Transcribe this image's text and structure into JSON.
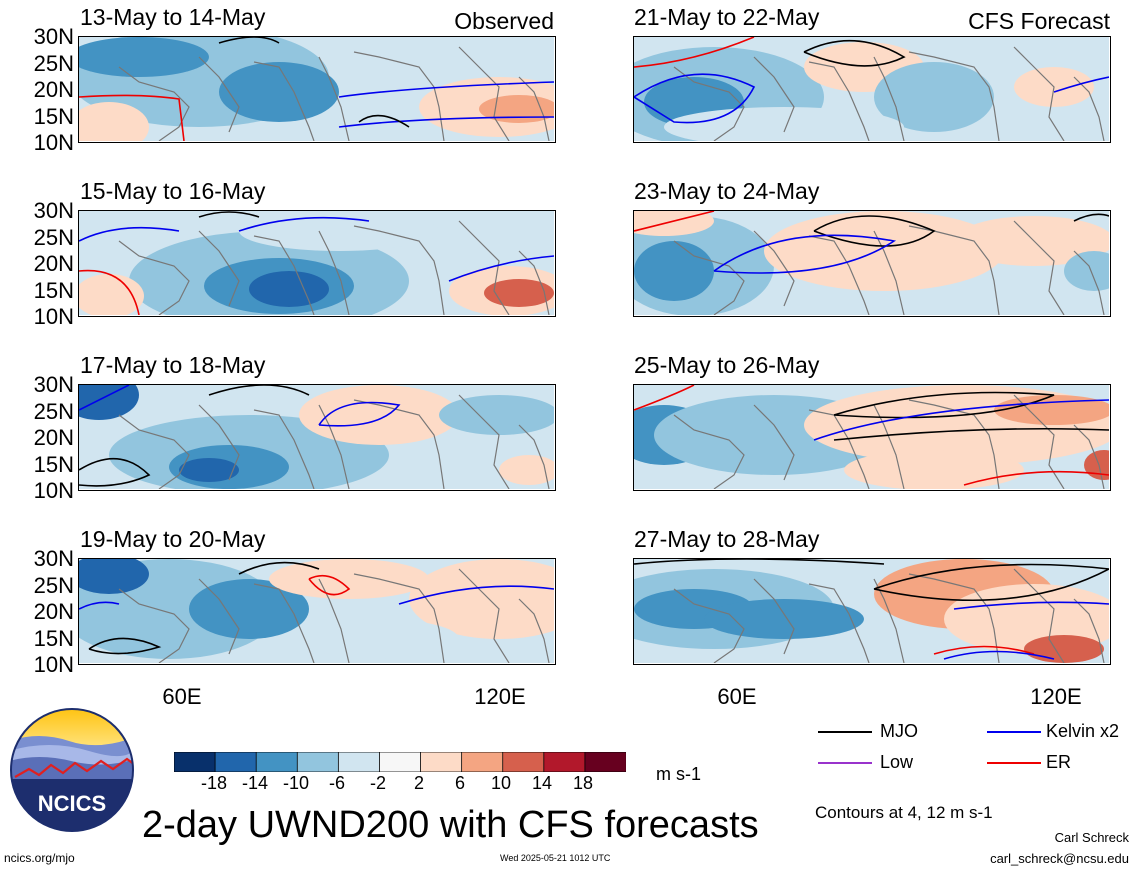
{
  "panels": [
    {
      "title": "13-May to 14-May",
      "tag": "Observed"
    },
    {
      "title": "21-May to 22-May",
      "tag": "CFS Forecast"
    },
    {
      "title": "15-May to 16-May",
      "tag": ""
    },
    {
      "title": "23-May to 24-May",
      "tag": ""
    },
    {
      "title": "17-May to 18-May",
      "tag": ""
    },
    {
      "title": "25-May to 26-May",
      "tag": ""
    },
    {
      "title": "19-May to 20-May",
      "tag": ""
    },
    {
      "title": "27-May to 28-May",
      "tag": ""
    }
  ],
  "lat_labels": [
    "30N",
    "25N",
    "20N",
    "15N",
    "10N"
  ],
  "lon_labels": [
    "60E",
    "120E"
  ],
  "colorbar": {
    "colors": [
      "#08306b",
      "#2166ac",
      "#4393c3",
      "#92c5de",
      "#d1e5f0",
      "#f7f7f7",
      "#fddbc7",
      "#f4a582",
      "#d6604d",
      "#b2182b",
      "#67001f"
    ],
    "labels": [
      "-18",
      "-14",
      "-10",
      "-6",
      "-2",
      "2",
      "6",
      "10",
      "14",
      "18"
    ],
    "units": "m s-1"
  },
  "legend": [
    {
      "label": "MJO",
      "color": "#000000"
    },
    {
      "label": "Kelvin x2",
      "color": "#0000ee"
    },
    {
      "label": "Low",
      "color": "#9933cc"
    },
    {
      "label": "ER",
      "color": "#ee0000"
    }
  ],
  "contours_note": "Contours at 4, 12 m s-1",
  "main_title": "2-day UWND200 with CFS forecasts",
  "logo_text": "NCICS",
  "footer": {
    "left": "ncics.org/mjo",
    "center": "Wed 2025-05-21 1012 UTC",
    "author": "Carl Schreck",
    "email": "carl_schreck@ncsu.edu"
  }
}
